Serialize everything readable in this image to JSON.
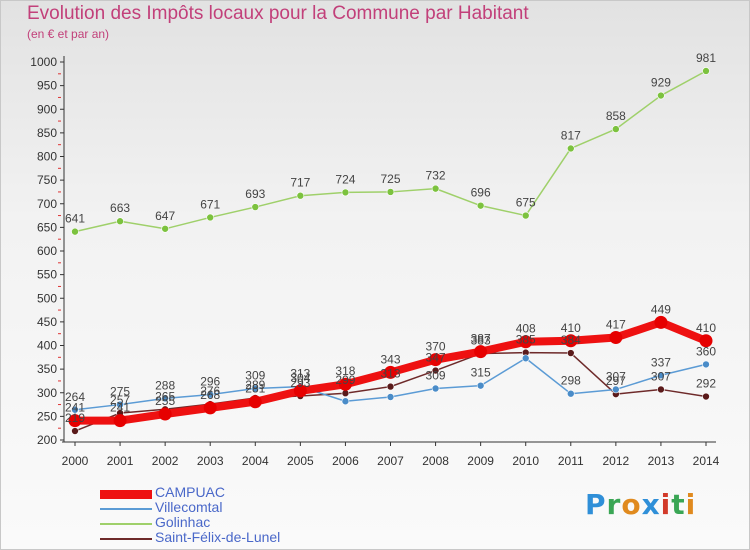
{
  "header": {
    "title": "Evolution des Impôts locaux pour la Commune par Habitant",
    "subtitle": "(en € et par an)"
  },
  "logo": {
    "text": "Proxiti",
    "colors": [
      "#2f8fd8",
      "#3aa655",
      "#e08a1e",
      "#2f8fd8",
      "#d23a2a",
      "#3aa655",
      "#e08a1e"
    ]
  },
  "chart_data": {
    "type": "line",
    "x": [
      2000,
      2001,
      2002,
      2003,
      2004,
      2005,
      2006,
      2007,
      2008,
      2009,
      2010,
      2011,
      2012,
      2013,
      2014
    ],
    "ylim": [
      200,
      1000
    ],
    "yticks": [
      200,
      250,
      300,
      350,
      400,
      450,
      500,
      550,
      600,
      650,
      700,
      750,
      800,
      850,
      900,
      950,
      1000
    ],
    "grid": false,
    "legend_position": "bottom-left",
    "series": [
      {
        "name": "Saint-Félix-de-Lunel",
        "color": "#6e2a2a",
        "marker": "#5a1a1a",
        "width": 1.5,
        "values": [
          219,
          257,
          265,
          276,
          289,
          293,
          299,
          313,
          347,
          383,
          385,
          384,
          297,
          307,
          292
        ],
        "labels": [
          "219",
          "257",
          "265",
          "276",
          "289",
          "293",
          "299",
          "313",
          "347",
          "383",
          "385",
          "384",
          "297",
          "307",
          "292"
        ]
      },
      {
        "name": "Villecomtal",
        "color": "#5b9bd5",
        "marker": "#4a8cc8",
        "width": 1.5,
        "values": [
          264,
          275,
          288,
          296,
          309,
          313,
          282,
          291,
          309,
          315,
          373,
          298,
          307,
          337,
          360
        ],
        "labels": [
          "264",
          "275",
          "288",
          "296",
          "309",
          "313",
          "",
          "",
          "309",
          "315",
          "",
          "298",
          "307",
          "337",
          "360"
        ]
      },
      {
        "name": "Golinhac",
        "color": "#9fd06a",
        "marker": "#7cc23e",
        "width": 1.5,
        "values": [
          641,
          663,
          647,
          671,
          693,
          717,
          724,
          725,
          732,
          696,
          675,
          817,
          858,
          929,
          981
        ],
        "labels": [
          "641",
          "663",
          "647",
          "671",
          "693",
          "717",
          "724",
          "725",
          "732",
          "696",
          "675",
          "817",
          "858",
          "929",
          "981"
        ]
      },
      {
        "name": "CAMPUAC",
        "color": "#ee1111",
        "marker": "#e60000",
        "width": 8,
        "values": [
          241,
          241,
          255,
          268,
          281,
          304,
          318,
          343,
          370,
          387,
          408,
          410,
          417,
          449,
          410
        ],
        "labels": [
          "241",
          "241",
          "255",
          "268",
          "281",
          "304",
          "318",
          "343",
          "370",
          "387",
          "408",
          "410",
          "417",
          "449",
          "410"
        ]
      }
    ],
    "legend_order": [
      "CAMPUAC",
      "Villecomtal",
      "Golinhac",
      "Saint-Félix-de-Lunel"
    ]
  }
}
